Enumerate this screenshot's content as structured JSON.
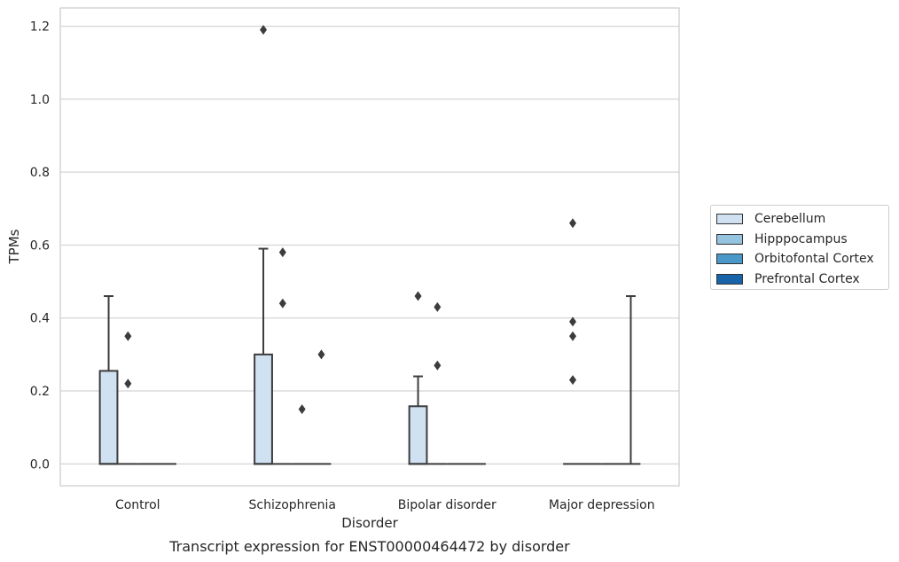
{
  "chart_data": {
    "type": "box",
    "title": "Transcript expression for ENST00000464472 by disorder",
    "xlabel": "Disorder",
    "ylabel": "TPMs",
    "categories": [
      "Control",
      "Schizophrenia",
      "Bipolar disorder",
      "Major depression"
    ],
    "ylim": [
      -0.06,
      1.25
    ],
    "yticks": [
      "0.0",
      "0.2",
      "0.4",
      "0.6",
      "0.8",
      "1.0",
      "1.2"
    ],
    "grid": true,
    "legend_position": "right",
    "series": [
      {
        "name": "Cerebellum",
        "color": "#d0e1f2",
        "boxes": [
          {
            "q1": 0.0,
            "median": 0.0,
            "q3": 0.255,
            "whisker_low": 0.0,
            "whisker_high": 0.46,
            "outliers": []
          },
          {
            "q1": 0.0,
            "median": 0.0,
            "q3": 0.3,
            "whisker_low": 0.0,
            "whisker_high": 0.59,
            "outliers": [
              1.19
            ]
          },
          {
            "q1": 0.0,
            "median": 0.0,
            "q3": 0.158,
            "whisker_low": 0.0,
            "whisker_high": 0.24,
            "outliers": [
              0.46
            ]
          },
          {
            "q1": 0.0,
            "median": 0.0,
            "q3": 0.0,
            "whisker_low": 0.0,
            "whisker_high": 0.0,
            "outliers": [
              0.23,
              0.35,
              0.39,
              0.66
            ]
          }
        ]
      },
      {
        "name": "Hipppocampus",
        "color": "#94c4df",
        "boxes": [
          {
            "q1": 0.0,
            "median": 0.0,
            "q3": 0.0,
            "whisker_low": 0.0,
            "whisker_high": 0.0,
            "outliers": [
              0.22,
              0.35
            ]
          },
          {
            "q1": 0.0,
            "median": 0.0,
            "q3": 0.0,
            "whisker_low": 0.0,
            "whisker_high": 0.0,
            "outliers": [
              0.44,
              0.58
            ]
          },
          {
            "q1": 0.0,
            "median": 0.0,
            "q3": 0.0,
            "whisker_low": 0.0,
            "whisker_high": 0.0,
            "outliers": [
              0.27,
              0.43
            ]
          },
          {
            "q1": 0.0,
            "median": 0.0,
            "q3": 0.0,
            "whisker_low": 0.0,
            "whisker_high": 0.0,
            "outliers": []
          }
        ]
      },
      {
        "name": "Orbitofontal Cortex",
        "color": "#4a98c9",
        "boxes": [
          {
            "q1": 0.0,
            "median": 0.0,
            "q3": 0.0,
            "whisker_low": 0.0,
            "whisker_high": 0.0,
            "outliers": []
          },
          {
            "q1": 0.0,
            "median": 0.0,
            "q3": 0.0,
            "whisker_low": 0.0,
            "whisker_high": 0.0,
            "outliers": [
              0.15
            ]
          },
          {
            "q1": 0.0,
            "median": 0.0,
            "q3": 0.0,
            "whisker_low": 0.0,
            "whisker_high": 0.0,
            "outliers": []
          },
          {
            "q1": 0.0,
            "median": 0.0,
            "q3": 0.0,
            "whisker_low": 0.0,
            "whisker_high": 0.0,
            "outliers": []
          }
        ]
      },
      {
        "name": "Prefrontal Cortex",
        "color": "#1764ab",
        "boxes": [
          {
            "q1": 0.0,
            "median": 0.0,
            "q3": 0.0,
            "whisker_low": 0.0,
            "whisker_high": 0.0,
            "outliers": []
          },
          {
            "q1": 0.0,
            "median": 0.0,
            "q3": 0.0,
            "whisker_low": 0.0,
            "whisker_high": 0.0,
            "outliers": [
              0.3
            ]
          },
          {
            "q1": 0.0,
            "median": 0.0,
            "q3": 0.0,
            "whisker_low": 0.0,
            "whisker_high": 0.0,
            "outliers": []
          },
          {
            "q1": 0.0,
            "median": 0.0,
            "q3": 0.0,
            "whisker_low": 0.0,
            "whisker_high": 0.46,
            "outliers": []
          }
        ]
      }
    ]
  }
}
